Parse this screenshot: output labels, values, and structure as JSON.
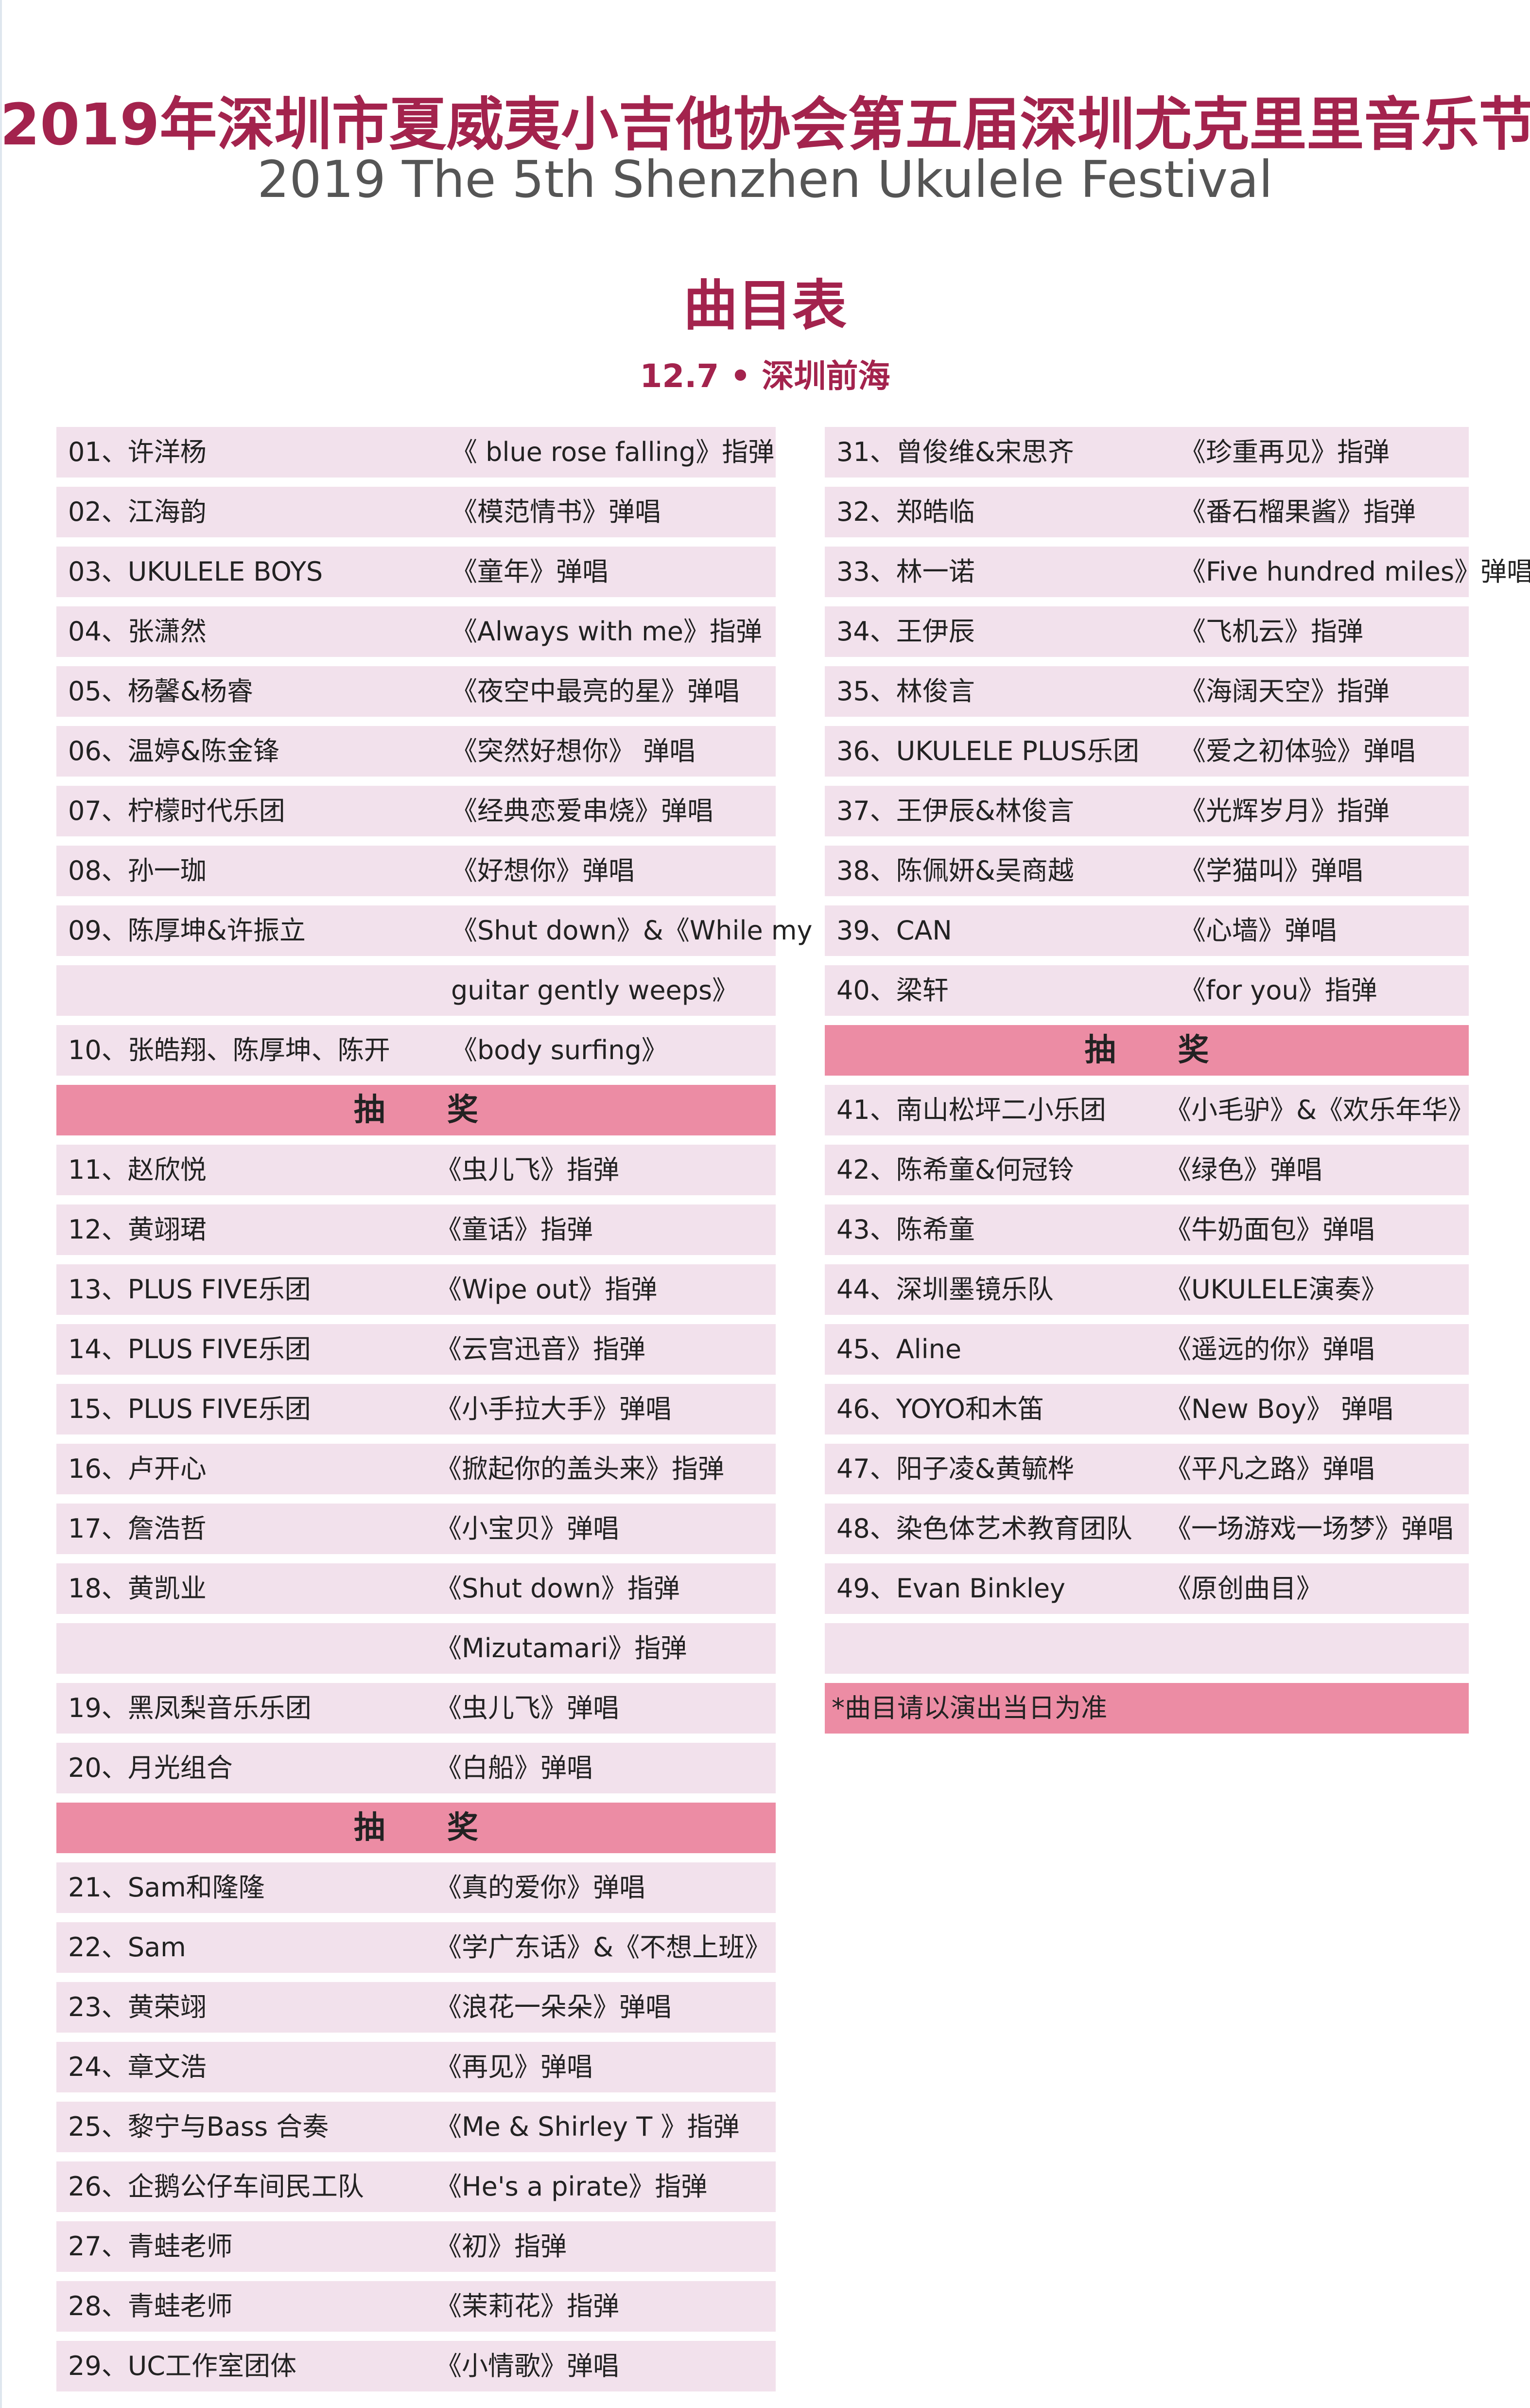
{
  "header": {
    "title": "2019年深圳市夏威夷小吉他协会第五届深圳尤克里里音乐节",
    "subtitle": "2019 The 5th Shenzhen Ukulele Festival",
    "heading": "曲目表",
    "dateline": "12.7 • 深圳前海"
  },
  "colors": {
    "title": "#a3234d",
    "row_bg": "#f2e1ec",
    "lottery_bg": "#ec8ca4"
  },
  "left_column": [
    {
      "type": "row",
      "sec": 0,
      "who": "01、许洋杨",
      "song": "《 blue rose falling》指弹"
    },
    {
      "type": "row",
      "sec": 0,
      "who": "02、江海韵",
      "song": "《模范情书》弹唱"
    },
    {
      "type": "row",
      "sec": 0,
      "who": "03、UKULELE BOYS",
      "song": "《童年》弹唱"
    },
    {
      "type": "row",
      "sec": 0,
      "who": "04、张潇然",
      "song": "《Always with me》指弹"
    },
    {
      "type": "row",
      "sec": 0,
      "who": "05、杨馨&杨睿",
      "song": "《夜空中最亮的星》弹唱"
    },
    {
      "type": "row",
      "sec": 0,
      "who": "06、温婷&陈金锋",
      "song": "《突然好想你》 弹唱"
    },
    {
      "type": "row",
      "sec": 0,
      "who": "07、柠檬时代乐团",
      "song": "《经典恋爱串烧》弹唱"
    },
    {
      "type": "row",
      "sec": 0,
      "who": "08、孙一珈",
      "song": "《好想你》弹唱"
    },
    {
      "type": "row",
      "sec": 0,
      "who": "09、陈厚坤&许振立",
      "song": "《Shut down》&《While my"
    },
    {
      "type": "row",
      "sec": 0,
      "who": "",
      "song": "guitar gently  weeps》"
    },
    {
      "type": "row",
      "sec": 0,
      "who": "10、张皓翔、陈厚坤、陈开",
      "song": "《body surfing》"
    },
    {
      "type": "lottery",
      "label": "抽　　奖"
    },
    {
      "type": "row",
      "sec": 1,
      "who": "11、赵欣悦",
      "song": "《虫儿飞》指弹"
    },
    {
      "type": "row",
      "sec": 1,
      "who": "12、黄翊珺",
      "song": "《童话》指弹"
    },
    {
      "type": "row",
      "sec": 1,
      "who": "13、PLUS FIVE乐团",
      "song": "《Wipe out》指弹"
    },
    {
      "type": "row",
      "sec": 1,
      "who": "14、PLUS FIVE乐团",
      "song": "《云宫迅音》指弹"
    },
    {
      "type": "row",
      "sec": 1,
      "who": "15、PLUS FIVE乐团",
      "song": "《小手拉大手》弹唱"
    },
    {
      "type": "row",
      "sec": 1,
      "who": "16、卢开心",
      "song": "《掀起你的盖头来》指弹"
    },
    {
      "type": "row",
      "sec": 1,
      "who": "17、詹浩哲",
      "song": "《小宝贝》弹唱"
    },
    {
      "type": "row",
      "sec": 1,
      "who": "18、黄凯业",
      "song": "《Shut down》指弹"
    },
    {
      "type": "row",
      "sec": 1,
      "who": "",
      "song": "《Mizutamari》指弹"
    },
    {
      "type": "row",
      "sec": 1,
      "who": "19、黑凤梨音乐乐团",
      "song": "《虫儿飞》弹唱"
    },
    {
      "type": "row",
      "sec": 1,
      "who": "20、月光组合",
      "song": "《白船》弹唱"
    },
    {
      "type": "lottery",
      "label": "抽　　奖"
    },
    {
      "type": "row",
      "sec": 2,
      "who": "21、Sam和隆隆",
      "song": "《真的爱你》弹唱"
    },
    {
      "type": "row",
      "sec": 2,
      "who": "22、Sam",
      "song": "《学广东话》&《不想上班》"
    },
    {
      "type": "row",
      "sec": 2,
      "who": "23、黄荣翊",
      "song": "《浪花一朵朵》弹唱"
    },
    {
      "type": "row",
      "sec": 2,
      "who": "24、章文浩",
      "song": "《再见》弹唱"
    },
    {
      "type": "row",
      "sec": 2,
      "who": "25、黎宁与Bass 合奏",
      "song": "《Me & Shirley T 》指弹"
    },
    {
      "type": "row",
      "sec": 2,
      "who": "26、企鹅公仔车间民工队",
      "song": "《He's a pirate》指弹"
    },
    {
      "type": "row",
      "sec": 2,
      "who": "27、青蛙老师",
      "song": "《初》指弹"
    },
    {
      "type": "row",
      "sec": 2,
      "who": "28、青蛙老师",
      "song": "《茉莉花》指弹"
    },
    {
      "type": "row",
      "sec": 2,
      "who": "29、UC工作室团体",
      "song": "《小情歌》弹唱"
    }
  ],
  "right_column": [
    {
      "type": "row",
      "sec": 0,
      "who": "31、曾俊维&宋思齐",
      "song": "《珍重再见》指弹"
    },
    {
      "type": "row",
      "sec": 0,
      "who": "32、郑皓临",
      "song": "《番石榴果酱》指弹"
    },
    {
      "type": "row",
      "sec": 0,
      "who": "33、林一诺",
      "song": "《Five hundred miles》弹唱"
    },
    {
      "type": "row",
      "sec": 0,
      "who": "34、王伊辰",
      "song": "《飞机云》指弹"
    },
    {
      "type": "row",
      "sec": 0,
      "who": "35、林俊言",
      "song": "《海阔天空》指弹"
    },
    {
      "type": "row",
      "sec": 0,
      "who": "36、UKULELE PLUS乐团",
      "song": "《爱之初体验》弹唱"
    },
    {
      "type": "row",
      "sec": 0,
      "who": "37、王伊辰&林俊言",
      "song": "《光辉岁月》指弹"
    },
    {
      "type": "row",
      "sec": 0,
      "who": "38、陈佩妍&吴商越",
      "song": "《学猫叫》弹唱"
    },
    {
      "type": "row",
      "sec": 0,
      "who": "39、CAN",
      "song": "《心墙》弹唱"
    },
    {
      "type": "row",
      "sec": 0,
      "who": "40、梁轩",
      "song": "《for you》指弹"
    },
    {
      "type": "lottery",
      "label": "抽　　奖"
    },
    {
      "type": "row",
      "sec": 1,
      "who": "41、南山松坪二小乐团",
      "song": "《小毛驴》&《欢乐年华》"
    },
    {
      "type": "row",
      "sec": 1,
      "who": "42、陈希童&何冠铃",
      "song": "《绿色》弹唱"
    },
    {
      "type": "row",
      "sec": 1,
      "who": "43、陈希童",
      "song": "《牛奶面包》弹唱"
    },
    {
      "type": "row",
      "sec": 1,
      "who": "44、深圳墨镜乐队",
      "song": "《UKULELE演奏》"
    },
    {
      "type": "row",
      "sec": 1,
      "who": "45、Aline",
      "song": "《遥远的你》弹唱"
    },
    {
      "type": "row",
      "sec": 1,
      "who": "46、YOYO和木笛",
      "song": "《New Boy》 弹唱"
    },
    {
      "type": "row",
      "sec": 1,
      "who": "47、阳子凌&黄毓桦",
      "song": "《平凡之路》弹唱"
    },
    {
      "type": "row",
      "sec": 1,
      "who": "48、染色体艺术教育团队",
      "song": "《一场游戏一场梦》弹唱"
    },
    {
      "type": "row",
      "sec": 1,
      "who": "49、Evan Binkley",
      "song": "《原创曲目》"
    },
    {
      "type": "row",
      "sec": 1,
      "who": "",
      "song": ""
    },
    {
      "type": "note",
      "who": "*曲目请以演出当日为准"
    }
  ]
}
